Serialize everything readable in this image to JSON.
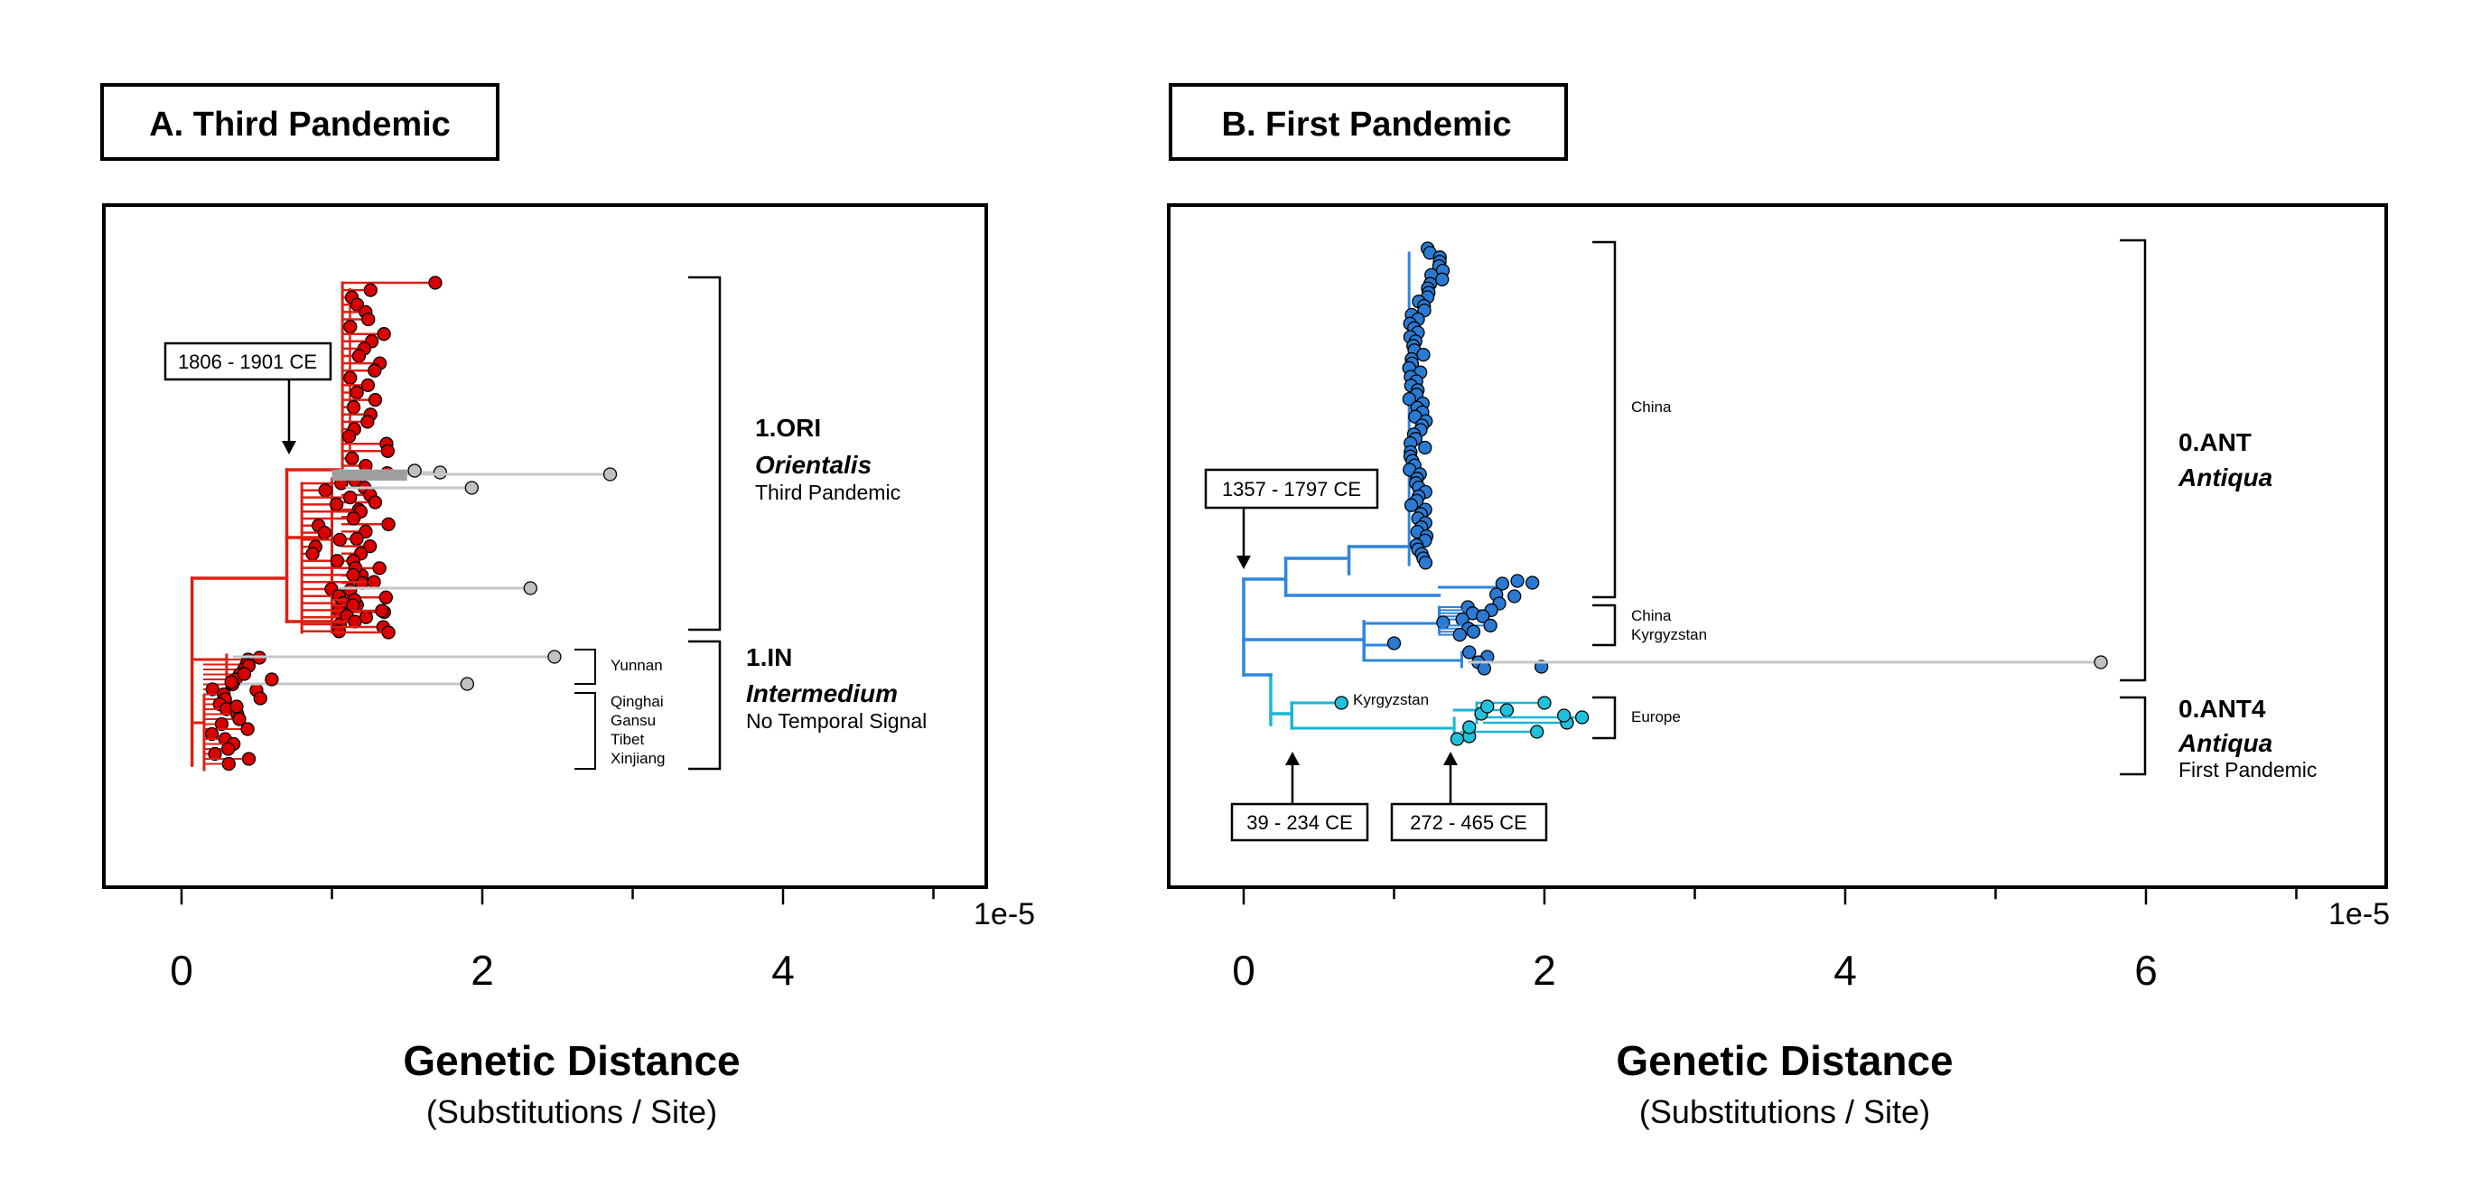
{
  "colors": {
    "red": "#e01e12",
    "red_dot": "#d80000",
    "grey": "#c7c7c7",
    "blue": "#2e86de",
    "blue_dot": "#2a7ad1",
    "cyan": "#19b6d6",
    "cyan_dot": "#1fc2da"
  },
  "chart_data": [
    {
      "type": "scatter",
      "title": "A. Third Pandemic",
      "xlabel": "Genetic Distance",
      "xlabel_sub": "(Substitutions / Site)",
      "x_scale_label": "1e-5",
      "x_ticks": [
        "0",
        "2",
        "4"
      ],
      "xlim": [
        -0.5,
        5.5
      ],
      "annotations": {
        "date_box": "1806 - 1901 CE",
        "clade1_code": "1.ORI",
        "clade1_name": "Orientalis",
        "clade1_note": "Third Pandemic",
        "clade2_code": "1.IN",
        "clade2_name": "Intermedium",
        "clade2_note": "No Temporal Signal",
        "region_yunnan": "Yunnan",
        "region_qinghai": "Qinghai",
        "region_gansu": "Gansu",
        "region_tibet": "Tibet",
        "region_xinjiang": "Xinjiang"
      },
      "outlier_tips_x": [
        1.55,
        1.72,
        2.85,
        1.93,
        2.32,
        2.48,
        1.9
      ]
    },
    {
      "type": "scatter",
      "title": "B. First Pandemic",
      "xlabel": "Genetic Distance",
      "xlabel_sub": "(Substitutions / Site)",
      "x_scale_label": "1e-5",
      "x_ticks": [
        "0",
        "2",
        "4",
        "6"
      ],
      "xlim": [
        -0.5,
        7.5
      ],
      "annotations": {
        "date_box_root": "1357 - 1797 CE",
        "date_box_ant4": "39 - 234 CE",
        "date_box_europe": "272 - 465 CE",
        "clade_code": "0.ANT",
        "clade_name": "Antiqua",
        "clade4_code": "0.ANT4",
        "clade4_name": "Antiqua",
        "clade4_note": "First Pandemic",
        "region_china1": "China",
        "region_china2": "China",
        "region_kyrgyzstan1": "Kyrgyzstan",
        "region_kyrgyzstan2": "Kyrgyzstan",
        "region_europe": "Europe"
      },
      "outlier_tips_x": [
        5.7
      ]
    }
  ]
}
